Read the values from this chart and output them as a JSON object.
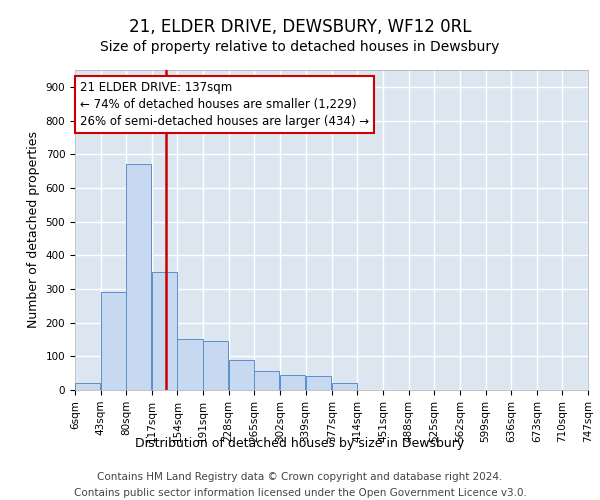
{
  "title": "21, ELDER DRIVE, DEWSBURY, WF12 0RL",
  "subtitle": "Size of property relative to detached houses in Dewsbury",
  "xlabel": "Distribution of detached houses by size in Dewsbury",
  "ylabel": "Number of detached properties",
  "bin_edges": [
    6,
    43,
    80,
    117,
    154,
    191,
    228,
    265,
    302,
    339,
    377,
    414,
    451,
    488,
    525,
    562,
    599,
    636,
    673,
    710,
    747
  ],
  "bar_heights": [
    20,
    290,
    670,
    350,
    150,
    145,
    90,
    55,
    45,
    42,
    20,
    0,
    0,
    0,
    0,
    0,
    0,
    0,
    0,
    0
  ],
  "bar_color": "#c6d9f0",
  "bar_edge_color": "#5b8fc9",
  "vline_x": 137,
  "vline_color": "#cc0000",
  "annotation_text": "21 ELDER DRIVE: 137sqm\n← 74% of detached houses are smaller (1,229)\n26% of semi-detached houses are larger (434) →",
  "annotation_box_facecolor": "#ffffff",
  "annotation_box_edgecolor": "#cc0000",
  "ylim": [
    0,
    950
  ],
  "yticks": [
    0,
    100,
    200,
    300,
    400,
    500,
    600,
    700,
    800,
    900
  ],
  "background_color": "#dce6f1",
  "grid_color": "#ffffff",
  "footer_line1": "Contains HM Land Registry data © Crown copyright and database right 2024.",
  "footer_line2": "Contains public sector information licensed under the Open Government Licence v3.0.",
  "title_fontsize": 12,
  "subtitle_fontsize": 10,
  "footer_fontsize": 7.5,
  "ylabel_fontsize": 9,
  "xlabel_fontsize": 9,
  "tick_fontsize": 7.5,
  "annot_fontsize": 8.5
}
